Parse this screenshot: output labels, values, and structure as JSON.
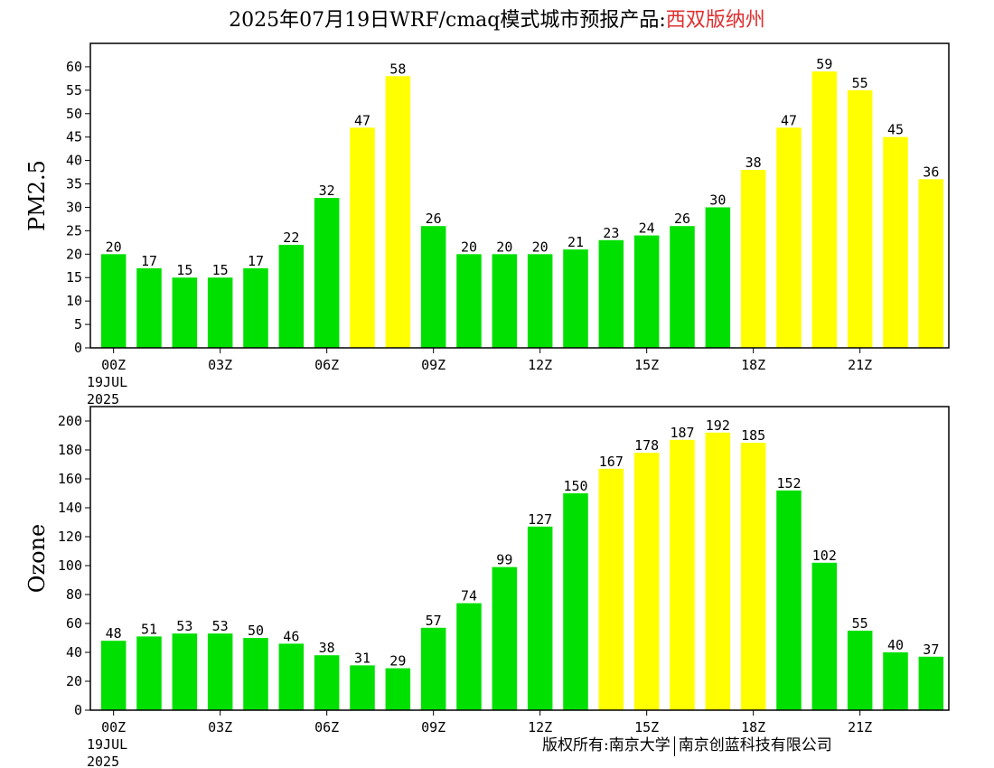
{
  "title": {
    "prefix": "2025年07月19日WRF/cmaq模式城市预报产品:",
    "city": "西双版纳州"
  },
  "footer": {
    "left": "版权所有:南京大学",
    "right": "南京创蓝科技有限公司"
  },
  "colors": {
    "green": "#00e000",
    "yellow": "#ffff00"
  },
  "chart_data": [
    {
      "type": "bar",
      "ylabel": "PM2.5",
      "ylim": [
        0,
        65
      ],
      "yticks": [
        0,
        5,
        10,
        15,
        20,
        25,
        30,
        35,
        40,
        45,
        50,
        55,
        60
      ],
      "x_ticks": [
        "00Z",
        "03Z",
        "06Z",
        "09Z",
        "12Z",
        "15Z",
        "18Z",
        "21Z"
      ],
      "x_tick_hours": [
        0,
        3,
        6,
        9,
        12,
        15,
        18,
        21
      ],
      "date_label": [
        "19JUL",
        "2025"
      ],
      "values": [
        20,
        17,
        15,
        15,
        17,
        22,
        32,
        47,
        58,
        26,
        20,
        20,
        20,
        21,
        23,
        24,
        26,
        30,
        38,
        47,
        59,
        55,
        45,
        36
      ],
      "bar_colors": [
        "green",
        "green",
        "green",
        "green",
        "green",
        "green",
        "green",
        "yellow",
        "yellow",
        "green",
        "green",
        "green",
        "green",
        "green",
        "green",
        "green",
        "green",
        "green",
        "yellow",
        "yellow",
        "yellow",
        "yellow",
        "yellow",
        "yellow"
      ]
    },
    {
      "type": "bar",
      "ylabel": "Ozone",
      "ylim": [
        0,
        210
      ],
      "yticks": [
        0,
        20,
        40,
        60,
        80,
        100,
        120,
        140,
        160,
        180,
        200
      ],
      "x_ticks": [
        "00Z",
        "03Z",
        "06Z",
        "09Z",
        "12Z",
        "15Z",
        "18Z",
        "21Z"
      ],
      "x_tick_hours": [
        0,
        3,
        6,
        9,
        12,
        15,
        18,
        21
      ],
      "date_label": [
        "19JUL",
        "2025"
      ],
      "values": [
        48,
        51,
        53,
        53,
        50,
        46,
        38,
        31,
        29,
        57,
        74,
        99,
        127,
        150,
        167,
        178,
        187,
        192,
        185,
        152,
        102,
        55,
        40,
        37
      ],
      "bar_colors": [
        "green",
        "green",
        "green",
        "green",
        "green",
        "green",
        "green",
        "green",
        "green",
        "green",
        "green",
        "green",
        "green",
        "green",
        "yellow",
        "yellow",
        "yellow",
        "yellow",
        "yellow",
        "green",
        "green",
        "green",
        "green",
        "green"
      ]
    }
  ]
}
